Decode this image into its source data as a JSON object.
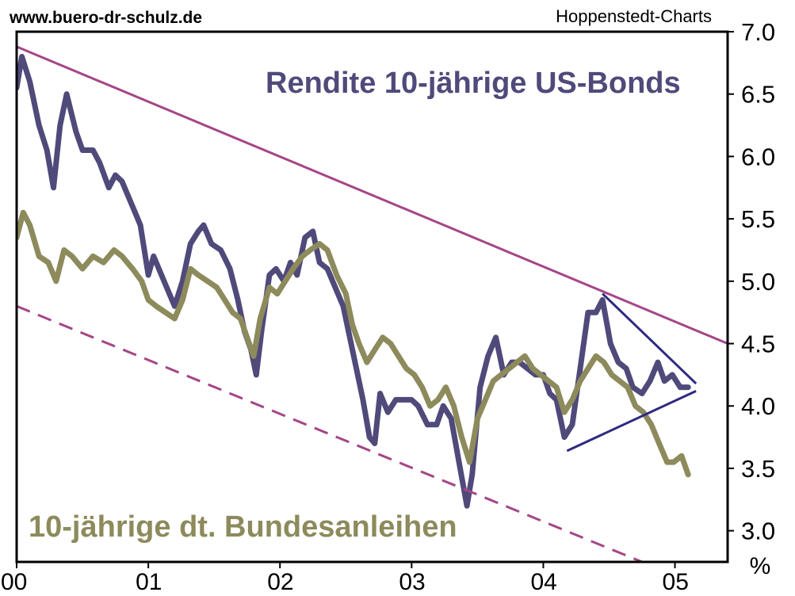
{
  "header": {
    "website": "www.buero-dr-schulz.de",
    "source": "Hoppenstedt-Charts"
  },
  "chart_data": {
    "type": "line",
    "unit_label": "%",
    "ylim": [
      2.75,
      7.0
    ],
    "y_ticks": [
      "3.0",
      "3.5",
      "4.0",
      "4.5",
      "5.0",
      "5.5",
      "6.0",
      "6.5",
      "7.0"
    ],
    "y_tick_values": [
      3.0,
      3.5,
      4.0,
      4.5,
      5.0,
      5.5,
      6.0,
      6.5,
      7.0
    ],
    "xlim": [
      2000.0,
      2005.4
    ],
    "x_ticks": [
      "00",
      "01",
      "02",
      "03",
      "04",
      "05"
    ],
    "x_tick_values": [
      2000,
      2001,
      2002,
      2003,
      2004,
      2005
    ],
    "grid": false,
    "colors": {
      "us": "#4f4a7a",
      "de": "#8d8a5c",
      "trend": "#a54587",
      "triangle": "#2e2a80",
      "frame": "#000000"
    },
    "series": [
      {
        "key": "us",
        "name": "Rendite 10-jährige US-Bonds",
        "points": [
          [
            2000.0,
            6.55
          ],
          [
            2000.04,
            6.8
          ],
          [
            2000.1,
            6.6
          ],
          [
            2000.17,
            6.25
          ],
          [
            2000.23,
            6.05
          ],
          [
            2000.28,
            5.75
          ],
          [
            2000.33,
            6.25
          ],
          [
            2000.38,
            6.5
          ],
          [
            2000.45,
            6.2
          ],
          [
            2000.5,
            6.05
          ],
          [
            2000.58,
            6.05
          ],
          [
            2000.63,
            5.95
          ],
          [
            2000.7,
            5.75
          ],
          [
            2000.75,
            5.85
          ],
          [
            2000.8,
            5.8
          ],
          [
            2000.88,
            5.6
          ],
          [
            2000.94,
            5.45
          ],
          [
            2001.0,
            5.05
          ],
          [
            2001.04,
            5.2
          ],
          [
            2001.12,
            5.0
          ],
          [
            2001.2,
            4.8
          ],
          [
            2001.26,
            5.0
          ],
          [
            2001.32,
            5.3
          ],
          [
            2001.38,
            5.4
          ],
          [
            2001.42,
            5.45
          ],
          [
            2001.48,
            5.3
          ],
          [
            2001.55,
            5.25
          ],
          [
            2001.62,
            5.1
          ],
          [
            2001.68,
            4.85
          ],
          [
            2001.73,
            4.6
          ],
          [
            2001.78,
            4.45
          ],
          [
            2001.82,
            4.25
          ],
          [
            2001.86,
            4.6
          ],
          [
            2001.92,
            5.05
          ],
          [
            2001.97,
            5.1
          ],
          [
            2002.03,
            5.0
          ],
          [
            2002.08,
            5.15
          ],
          [
            2002.13,
            5.05
          ],
          [
            2002.19,
            5.35
          ],
          [
            2002.25,
            5.4
          ],
          [
            2002.3,
            5.15
          ],
          [
            2002.36,
            5.1
          ],
          [
            2002.42,
            4.95
          ],
          [
            2002.48,
            4.8
          ],
          [
            2002.53,
            4.55
          ],
          [
            2002.58,
            4.3
          ],
          [
            2002.63,
            4.05
          ],
          [
            2002.68,
            3.75
          ],
          [
            2002.72,
            3.7
          ],
          [
            2002.76,
            4.1
          ],
          [
            2002.82,
            3.95
          ],
          [
            2002.88,
            4.05
          ],
          [
            2002.94,
            4.05
          ],
          [
            2003.0,
            4.05
          ],
          [
            2003.05,
            4.0
          ],
          [
            2003.12,
            3.85
          ],
          [
            2003.19,
            3.85
          ],
          [
            2003.24,
            4.0
          ],
          [
            2003.3,
            3.9
          ],
          [
            2003.36,
            3.55
          ],
          [
            2003.42,
            3.2
          ],
          [
            2003.46,
            3.45
          ],
          [
            2003.52,
            4.15
          ],
          [
            2003.58,
            4.4
          ],
          [
            2003.64,
            4.55
          ],
          [
            2003.7,
            4.25
          ],
          [
            2003.76,
            4.35
          ],
          [
            2003.82,
            4.35
          ],
          [
            2003.88,
            4.3
          ],
          [
            2003.94,
            4.25
          ],
          [
            2004.0,
            4.25
          ],
          [
            2004.05,
            4.1
          ],
          [
            2004.1,
            4.05
          ],
          [
            2004.16,
            3.75
          ],
          [
            2004.22,
            3.85
          ],
          [
            2004.28,
            4.3
          ],
          [
            2004.34,
            4.75
          ],
          [
            2004.4,
            4.75
          ],
          [
            2004.45,
            4.85
          ],
          [
            2004.51,
            4.5
          ],
          [
            2004.57,
            4.35
          ],
          [
            2004.63,
            4.3
          ],
          [
            2004.68,
            4.15
          ],
          [
            2004.75,
            4.1
          ],
          [
            2004.81,
            4.2
          ],
          [
            2004.87,
            4.35
          ],
          [
            2004.92,
            4.2
          ],
          [
            2004.98,
            4.25
          ],
          [
            2005.04,
            4.15
          ],
          [
            2005.1,
            4.15
          ]
        ]
      },
      {
        "key": "de",
        "name": "10-jährige dt. Bundesanleihen",
        "points": [
          [
            2000.0,
            5.35
          ],
          [
            2000.05,
            5.55
          ],
          [
            2000.1,
            5.45
          ],
          [
            2000.17,
            5.2
          ],
          [
            2000.24,
            5.15
          ],
          [
            2000.3,
            5.0
          ],
          [
            2000.36,
            5.25
          ],
          [
            2000.42,
            5.2
          ],
          [
            2000.5,
            5.1
          ],
          [
            2000.58,
            5.2
          ],
          [
            2000.66,
            5.15
          ],
          [
            2000.74,
            5.25
          ],
          [
            2000.8,
            5.2
          ],
          [
            2000.88,
            5.1
          ],
          [
            2000.95,
            5.0
          ],
          [
            2001.0,
            4.85
          ],
          [
            2001.06,
            4.8
          ],
          [
            2001.13,
            4.75
          ],
          [
            2001.2,
            4.7
          ],
          [
            2001.26,
            4.85
          ],
          [
            2001.32,
            5.1
          ],
          [
            2001.38,
            5.05
          ],
          [
            2001.45,
            5.0
          ],
          [
            2001.52,
            4.95
          ],
          [
            2001.58,
            4.85
          ],
          [
            2001.64,
            4.75
          ],
          [
            2001.7,
            4.7
          ],
          [
            2001.75,
            4.55
          ],
          [
            2001.8,
            4.4
          ],
          [
            2001.85,
            4.7
          ],
          [
            2001.92,
            4.95
          ],
          [
            2001.98,
            4.9
          ],
          [
            2002.04,
            5.0
          ],
          [
            2002.1,
            5.1
          ],
          [
            2002.17,
            5.2
          ],
          [
            2002.23,
            5.25
          ],
          [
            2002.3,
            5.3
          ],
          [
            2002.36,
            5.25
          ],
          [
            2002.43,
            5.05
          ],
          [
            2002.5,
            4.9
          ],
          [
            2002.55,
            4.65
          ],
          [
            2002.6,
            4.5
          ],
          [
            2002.66,
            4.35
          ],
          [
            2002.72,
            4.45
          ],
          [
            2002.78,
            4.55
          ],
          [
            2002.84,
            4.5
          ],
          [
            2002.9,
            4.4
          ],
          [
            2002.96,
            4.3
          ],
          [
            2003.02,
            4.25
          ],
          [
            2003.08,
            4.15
          ],
          [
            2003.14,
            4.0
          ],
          [
            2003.2,
            4.05
          ],
          [
            2003.26,
            4.15
          ],
          [
            2003.32,
            4.0
          ],
          [
            2003.38,
            3.75
          ],
          [
            2003.44,
            3.55
          ],
          [
            2003.5,
            3.9
          ],
          [
            2003.56,
            4.05
          ],
          [
            2003.62,
            4.2
          ],
          [
            2003.68,
            4.25
          ],
          [
            2003.74,
            4.3
          ],
          [
            2003.8,
            4.35
          ],
          [
            2003.86,
            4.4
          ],
          [
            2003.92,
            4.3
          ],
          [
            2003.98,
            4.25
          ],
          [
            2004.04,
            4.2
          ],
          [
            2004.1,
            4.15
          ],
          [
            2004.16,
            3.95
          ],
          [
            2004.22,
            4.05
          ],
          [
            2004.28,
            4.2
          ],
          [
            2004.34,
            4.3
          ],
          [
            2004.4,
            4.4
          ],
          [
            2004.46,
            4.35
          ],
          [
            2004.52,
            4.25
          ],
          [
            2004.58,
            4.2
          ],
          [
            2004.64,
            4.15
          ],
          [
            2004.7,
            4.0
          ],
          [
            2004.76,
            3.95
          ],
          [
            2004.82,
            3.85
          ],
          [
            2004.88,
            3.7
          ],
          [
            2004.94,
            3.55
          ],
          [
            2004.99,
            3.55
          ],
          [
            2005.05,
            3.6
          ],
          [
            2005.1,
            3.45
          ]
        ]
      }
    ],
    "annotations": [
      {
        "key": "upper-trendline",
        "style": "solid",
        "points": [
          [
            2000.0,
            6.88
          ],
          [
            2005.4,
            4.5
          ]
        ]
      },
      {
        "key": "lower-trendline",
        "style": "dashed",
        "points": [
          [
            2000.0,
            4.8
          ],
          [
            2004.75,
            2.75
          ]
        ]
      },
      {
        "key": "triangle-upper-line",
        "style": "solid",
        "points": [
          [
            2004.45,
            4.9
          ],
          [
            2005.16,
            4.18
          ]
        ]
      },
      {
        "key": "triangle-lower-line",
        "style": "solid",
        "points": [
          [
            2004.18,
            3.64
          ],
          [
            2005.16,
            4.12
          ]
        ]
      }
    ]
  }
}
